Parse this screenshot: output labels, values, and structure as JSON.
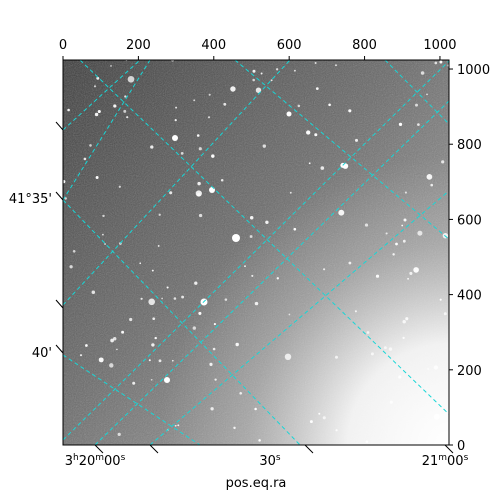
{
  "chart_data": {
    "type": "image",
    "title": "",
    "xlabel": "pos.eq.ra",
    "ylabel": "",
    "pixel_axes": {
      "x": {
        "range": [
          0,
          1024
        ],
        "ticks": [
          0,
          200,
          400,
          600,
          800,
          1000
        ],
        "position": "top"
      },
      "y": {
        "range": [
          0,
          1024
        ],
        "ticks": [
          0,
          200,
          400,
          600,
          800,
          1000
        ],
        "position": "right"
      }
    },
    "world_axes": {
      "ra": {
        "position": "bottom",
        "ticks": [
          {
            "main": "3",
            "main_unit": "h",
            "mid": "20",
            "mid_unit": "m",
            "sec": "00",
            "sec_unit": "s"
          },
          {
            "main": "",
            "main_unit": "",
            "mid": "",
            "mid_unit": "",
            "sec": "30",
            "sec_unit": "s"
          },
          {
            "main": "",
            "main_unit": "",
            "mid": "21",
            "mid_unit": "m",
            "sec": "00",
            "sec_unit": "s"
          }
        ]
      },
      "dec": {
        "position": "left",
        "ticks": [
          "41°35'",
          "40'"
        ]
      }
    },
    "grid": {
      "on": true,
      "color": "#18d6d6",
      "style": "dashed"
    },
    "colormap": "grayscale"
  }
}
